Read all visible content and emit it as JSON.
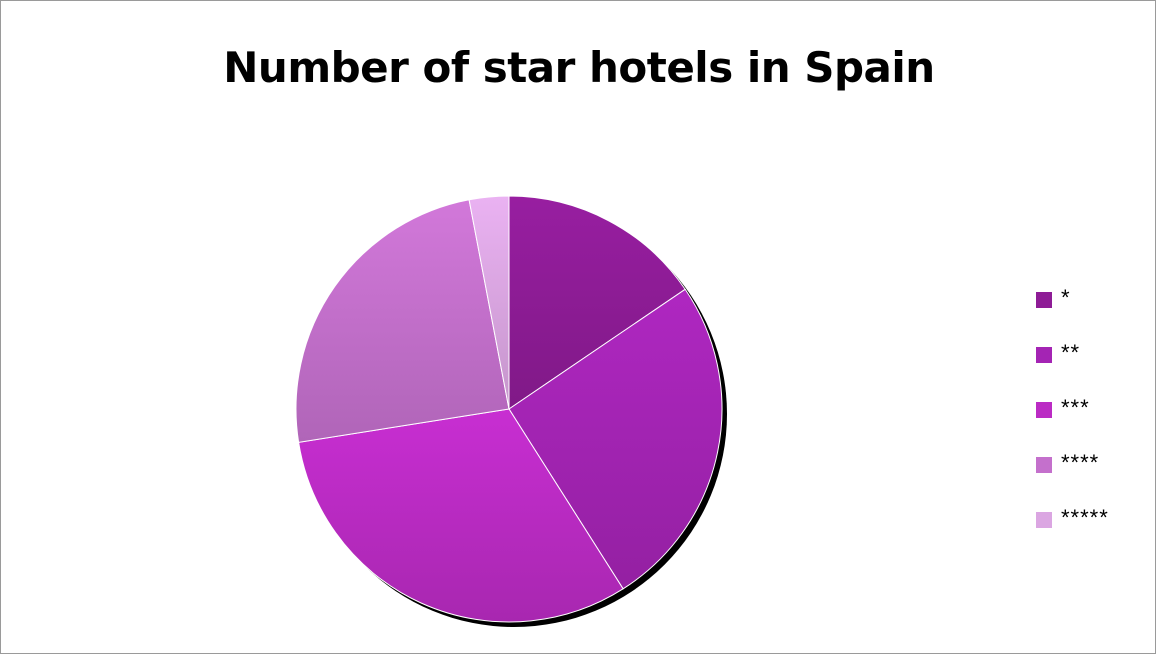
{
  "chart_data": {
    "type": "pie",
    "title": "Number of star hotels in Spain",
    "categories": [
      "*",
      "**",
      "***",
      "****",
      "*****"
    ],
    "values": [
      15.5,
      25.5,
      31.5,
      24.5,
      3.0
    ],
    "unit": "percent of total (estimated)",
    "start_angle_deg": 0,
    "direction": "clockwise",
    "legend_position": "right",
    "colors": [
      "#8e1c96",
      "#a424b4",
      "#bb2bc4",
      "#c470cc",
      "#dba6e2"
    ]
  }
}
